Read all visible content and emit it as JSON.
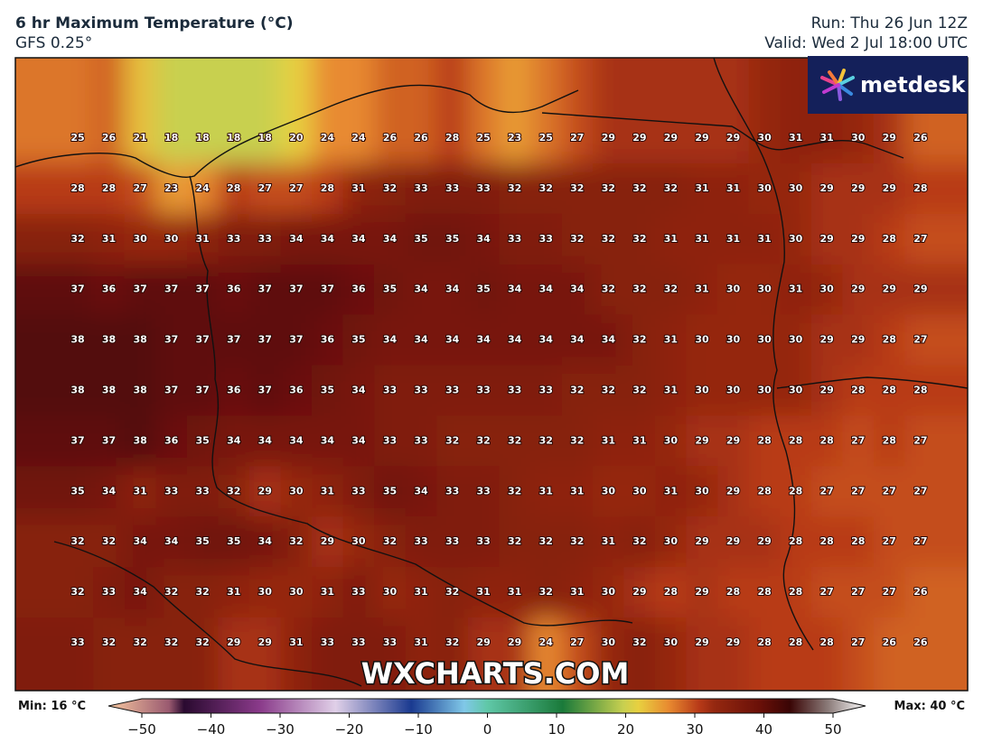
{
  "header": {
    "title": "6 hr Maximum Temperature (°C)",
    "model": "GFS 0.25°",
    "run": "Run: Thu 26 Jun 12Z",
    "valid": "Valid: Wed 2 Jul 18:00 UTC"
  },
  "logo": "metdesk",
  "watermark": "WXCHARTS.COM",
  "grid": [
    [
      25,
      26,
      21,
      18,
      18,
      18,
      18,
      20,
      24,
      24,
      26,
      26,
      28,
      25,
      23,
      25,
      27,
      29,
      29,
      29,
      29,
      29,
      30,
      31,
      31,
      30,
      29,
      26
    ],
    [
      28,
      28,
      27,
      23,
      24,
      28,
      27,
      27,
      28,
      31,
      32,
      33,
      33,
      33,
      32,
      32,
      32,
      32,
      32,
      32,
      31,
      31,
      30,
      30,
      29,
      29,
      29,
      28
    ],
    [
      32,
      31,
      30,
      30,
      31,
      33,
      33,
      34,
      34,
      34,
      34,
      35,
      35,
      34,
      33,
      33,
      32,
      32,
      32,
      31,
      31,
      31,
      31,
      30,
      29,
      29,
      28,
      27
    ],
    [
      37,
      36,
      37,
      37,
      37,
      36,
      37,
      37,
      37,
      36,
      35,
      34,
      34,
      35,
      34,
      34,
      34,
      32,
      32,
      32,
      31,
      30,
      30,
      31,
      30,
      29,
      29,
      29
    ],
    [
      38,
      38,
      38,
      37,
      37,
      37,
      37,
      37,
      36,
      35,
      34,
      34,
      34,
      34,
      34,
      34,
      34,
      34,
      32,
      31,
      30,
      30,
      30,
      30,
      29,
      29,
      28,
      27
    ],
    [
      38,
      38,
      38,
      37,
      37,
      36,
      37,
      36,
      35,
      34,
      33,
      33,
      33,
      33,
      33,
      33,
      32,
      32,
      32,
      31,
      30,
      30,
      30,
      30,
      29,
      28,
      28,
      28
    ],
    [
      37,
      37,
      38,
      36,
      35,
      34,
      34,
      34,
      34,
      34,
      33,
      33,
      32,
      32,
      32,
      32,
      32,
      31,
      31,
      30,
      29,
      29,
      28,
      28,
      28,
      27,
      28,
      27
    ],
    [
      35,
      34,
      31,
      33,
      33,
      32,
      29,
      30,
      31,
      33,
      35,
      34,
      33,
      33,
      32,
      31,
      31,
      30,
      30,
      31,
      30,
      29,
      28,
      28,
      27,
      27,
      27,
      27
    ],
    [
      32,
      32,
      34,
      34,
      35,
      35,
      34,
      32,
      29,
      30,
      32,
      33,
      33,
      33,
      32,
      32,
      32,
      31,
      32,
      30,
      29,
      29,
      29,
      28,
      28,
      28,
      27,
      27
    ],
    [
      32,
      33,
      34,
      32,
      32,
      31,
      30,
      30,
      31,
      33,
      30,
      31,
      32,
      31,
      31,
      32,
      31,
      30,
      29,
      28,
      29,
      28,
      28,
      28,
      27,
      27,
      27,
      26
    ],
    [
      33,
      32,
      32,
      32,
      32,
      29,
      29,
      31,
      33,
      33,
      33,
      31,
      32,
      29,
      29,
      24,
      27,
      30,
      32,
      30,
      29,
      29,
      28,
      28,
      28,
      27,
      26,
      26
    ]
  ],
  "legend": {
    "min": "Min: 16 °C",
    "max": "Max: 40 °C",
    "ticks": [
      {
        "value": -50,
        "label": "−50"
      },
      {
        "value": -40,
        "label": "−40"
      },
      {
        "value": -30,
        "label": "−30"
      },
      {
        "value": -20,
        "label": "−20"
      },
      {
        "value": -10,
        "label": "−10"
      },
      0,
      10,
      20,
      30,
      40,
      50
    ]
  }
}
